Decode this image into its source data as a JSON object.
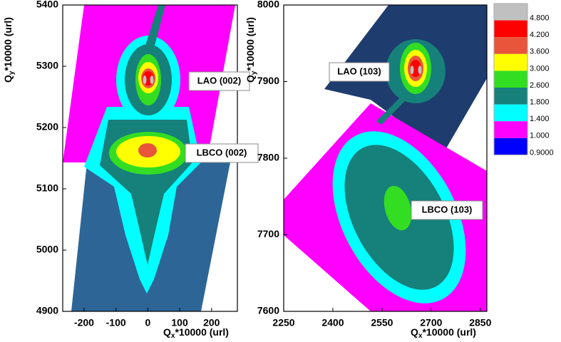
{
  "chart_data": [
    {
      "type": "contour",
      "xlabel": {
        "main": "Q",
        "sub": "x",
        "rest": "*10000 (url)"
      },
      "ylabel": {
        "main": "Q",
        "sub": "y",
        "rest": "*10000 (url)"
      },
      "xlim": [
        -267,
        281
      ],
      "ylim": [
        4900,
        5400
      ],
      "xticks": [
        -200,
        -100,
        0,
        100,
        200
      ],
      "yticks": [
        4900,
        5000,
        5100,
        5200,
        5300,
        5400
      ],
      "annotations": [
        "LAO (002)",
        "LBCO (002)"
      ]
    },
    {
      "type": "contour",
      "xlabel": {
        "main": "Q",
        "sub": "x",
        "rest": "*10000 (url)"
      },
      "ylabel": {
        "main": "Q",
        "sub": "y",
        "rest": "*10000 (url)"
      },
      "xlim": [
        2250,
        2870
      ],
      "ylim": [
        7600,
        8000
      ],
      "xticks": [
        2250,
        2400,
        2550,
        2700,
        2850
      ],
      "yticks": [
        7600,
        7700,
        7800,
        7900,
        8000
      ],
      "annotations": [
        "LAO (103)",
        "LBCO (103)"
      ]
    }
  ],
  "colorbar": {
    "levels": [
      {
        "value": 4.8,
        "label": "4.800"
      },
      {
        "value": 4.2,
        "label": "4.200"
      },
      {
        "value": 3.6,
        "label": "3.600"
      },
      {
        "value": 3,
        "label": "3.000"
      },
      {
        "value": 2.6,
        "label": "2.600"
      },
      {
        "value": 1.8,
        "label": "1.800"
      },
      {
        "value": 1.4,
        "label": "1.400"
      },
      {
        "value": 1,
        "label": "1.000"
      },
      {
        "value": 0.9,
        "label": "0.9000"
      }
    ],
    "colors": [
      "#c0c0c0",
      "#ff0000",
      "#e8553a",
      "#ffff00",
      "#33dd22",
      "#16807a",
      "#00ffff",
      "#ff00ff",
      "#0000ff"
    ]
  }
}
